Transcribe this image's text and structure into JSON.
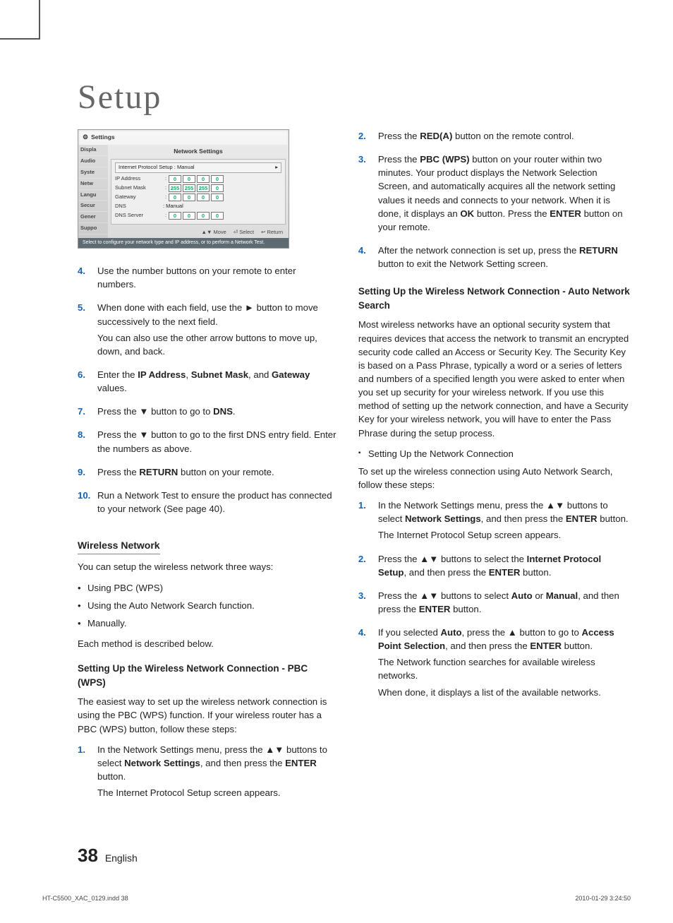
{
  "page": {
    "title": "Setup",
    "page_number": "38",
    "page_lang": "English",
    "print_file": "HT-C5500_XAC_0129.indd   38",
    "print_stamp": "2010-01-29    3:24:50"
  },
  "settings_mock": {
    "header_icon": "gear-icon",
    "header": "Settings",
    "panel_title": "Network Settings",
    "ips_label": "Internet Protocol Setup  : Manual",
    "side_items": [
      "Displa",
      "Audio",
      "Syste",
      "Netw",
      "Langu",
      "Secur",
      "Gener",
      "Suppo"
    ],
    "rows": [
      {
        "label": "IP Address",
        "octets": [
          "0",
          "0",
          "0",
          "0"
        ]
      },
      {
        "label": "Subnet Mask",
        "octets": [
          "255",
          "255",
          "255",
          "0"
        ]
      },
      {
        "label": "Gateway",
        "octets": [
          "0",
          "0",
          "0",
          "0"
        ]
      }
    ],
    "dns_label": "DNS",
    "dns_mode": ": Manual",
    "dns_server": {
      "label": "DNS Server",
      "octets": [
        "0",
        "0",
        "0",
        "0"
      ]
    },
    "hints": {
      "move": "Move",
      "select": "Select",
      "return": "Return",
      "move_glyph": "▲▼",
      "select_glyph": "⏎",
      "return_glyph": "↩"
    },
    "footer_note": "Select to configure your network type and IP address, or to perform a Network Test."
  },
  "left": {
    "steps_a": [
      {
        "n": "4.",
        "paras": [
          "Use the number buttons on your remote to enter numbers."
        ]
      },
      {
        "n": "5.",
        "paras": [
          "When done with each field, use the ► button to move successively to the next field.",
          "You can also use the other arrow buttons to move up, down, and back."
        ]
      },
      {
        "n": "6.",
        "paras": [
          "Enter the <b>IP Address</b>, <b>Subnet Mask</b>, and <b>Gateway</b> values."
        ]
      },
      {
        "n": "7.",
        "paras": [
          "Press the ▼ button to go to <b>DNS</b>."
        ]
      },
      {
        "n": "8.",
        "paras": [
          "Press the ▼ button to go to the first DNS entry field. Enter the numbers as above."
        ]
      },
      {
        "n": "9.",
        "paras": [
          "Press the <b>RETURN</b> button on your remote."
        ]
      },
      {
        "n": "10.",
        "paras": [
          "Run a Network Test to ensure the product has connected to your network (See page 40)."
        ]
      }
    ],
    "h_wireless": "Wireless Network",
    "wireless_intro": "You can setup the wireless network three ways:",
    "wireless_bullets": [
      "Using PBC (WPS)",
      "Using the Auto Network Search function.",
      "Manually."
    ],
    "wireless_outro": "Each method is described below.",
    "h_pbc": "Setting Up the Wireless Network Connection - PBC (WPS)",
    "pbc_intro": "The easiest way to set up the wireless network connection is using the PBC (WPS) function. If your wireless router has a PBC (WPS) button, follow these steps:",
    "pbc_steps": [
      {
        "n": "1.",
        "paras": [
          "In the Network Settings menu, press the ▲▼ buttons to select <b>Network Settings</b>, and then press the <b>ENTER</b> button.",
          "The Internet Protocol Setup screen appears."
        ]
      }
    ]
  },
  "right": {
    "pbc_steps_cont": [
      {
        "n": "2.",
        "paras": [
          "Press the <b>RED(A)</b> button on the remote control."
        ]
      },
      {
        "n": "3.",
        "paras": [
          "Press the <b>PBC (WPS)</b> button on your router within two minutes. Your product displays the Network Selection Screen, and automatically acquires all the network setting values it needs and connects to your network. When it is done, it displays an <b>OK</b> button. Press the <b>ENTER</b> button on your remote."
        ]
      },
      {
        "n": "4.",
        "paras": [
          "After the network connection is set up, press the <b>RETURN</b> button to exit the Network Setting screen."
        ]
      }
    ],
    "h_auto": "Setting Up the Wireless Network Connection - Auto Network Search",
    "auto_intro": "Most wireless networks have an optional security system that requires devices that access the network to transmit an encrypted security code called an Access or Security Key. The Security Key is based on a Pass Phrase, typically a word or a series of letters and numbers of a specified length you were asked to enter when you set up security for your wireless network. If you use this method of setting up the network connection, and have a Security Key for your wireless network, you will have to enter the Pass Phrase during the setup process.",
    "auto_sq": "Setting Up the Network Connection",
    "auto_lead": "To set up the wireless connection using Auto Network Search, follow these steps:",
    "auto_steps": [
      {
        "n": "1.",
        "paras": [
          "In the Network Settings menu, press the ▲▼ buttons to select <b>Network Settings</b>, and then press the <b>ENTER</b> button.",
          "The Internet Protocol Setup screen appears."
        ]
      },
      {
        "n": "2.",
        "paras": [
          "Press the ▲▼ buttons to select the <b>Internet Protocol Setup</b>, and then press the <b>ENTER</b> button."
        ]
      },
      {
        "n": "3.",
        "paras": [
          "Press the ▲▼ buttons to select <b>Auto</b> or <b>Manual</b>, and then press the <b>ENTER</b> button."
        ]
      },
      {
        "n": "4.",
        "paras": [
          "If you selected <b>Auto</b>, press the ▲ button to go to <b>Access Point Selection</b>, and then press the <b>ENTER</b> button.",
          "The Network function searches for available wireless networks.",
          "When done, it displays a list of the available networks."
        ]
      }
    ]
  },
  "glyphs": {
    "right": "►",
    "down": "▼",
    "updown": "▲▼",
    "up": "▲",
    "play": "▸"
  }
}
